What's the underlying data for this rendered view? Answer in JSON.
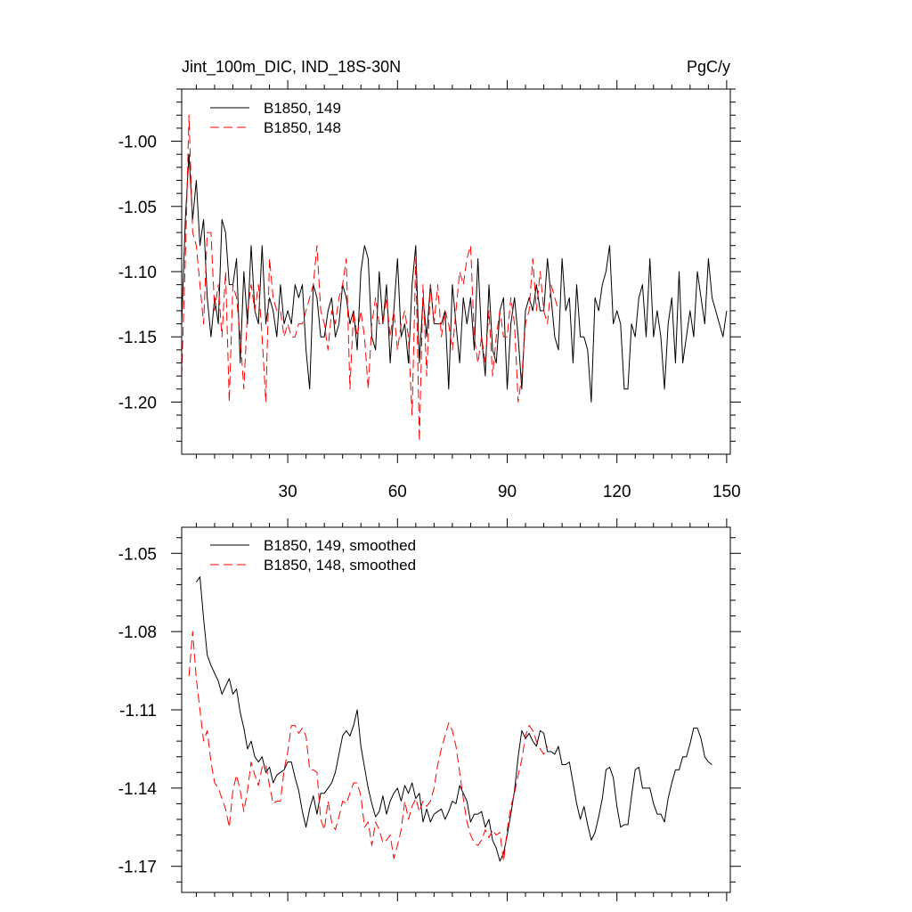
{
  "chart_data": [
    {
      "type": "line",
      "title_left": "Jint_100m_DIC, IND_18S-30N",
      "title_right": "PgC/y",
      "xlim": [
        1,
        151
      ],
      "ylim": [
        -1.24,
        -0.96
      ],
      "x_ticks": [
        30,
        60,
        90,
        120,
        150
      ],
      "x_tick_labels": [
        "30",
        "60",
        "90",
        "120",
        "150"
      ],
      "y_ticks": [
        -1.0,
        -1.05,
        -1.1,
        -1.15,
        -1.2
      ],
      "y_tick_labels": [
        "-1.00",
        "-1.05",
        "-1.10",
        "-1.15",
        "-1.20"
      ],
      "legend_position": "top-left",
      "series": [
        {
          "name": "B1850, 149",
          "color": "#000000",
          "dash": "solid",
          "x_start": 1,
          "values": [
            -1.14,
            -1.06,
            -1.01,
            -1.06,
            -1.03,
            -1.08,
            -1.06,
            -1.12,
            -1.15,
            -1.12,
            -1.14,
            -1.06,
            -1.07,
            -1.11,
            -1.11,
            -1.09,
            -1.17,
            -1.1,
            -1.14,
            -1.08,
            -1.13,
            -1.14,
            -1.08,
            -1.14,
            -1.12,
            -1.13,
            -1.15,
            -1.11,
            -1.14,
            -1.13,
            -1.14,
            -1.11,
            -1.12,
            -1.11,
            -1.16,
            -1.19,
            -1.11,
            -1.12,
            -1.15,
            -1.15,
            -1.13,
            -1.12,
            -1.15,
            -1.14,
            -1.11,
            -1.12,
            -1.14,
            -1.13,
            -1.16,
            -1.1,
            -1.08,
            -1.09,
            -1.15,
            -1.16,
            -1.1,
            -1.14,
            -1.11,
            -1.17,
            -1.13,
            -1.09,
            -1.15,
            -1.14,
            -1.17,
            -1.11,
            -1.08,
            -1.17,
            -1.12,
            -1.15,
            -1.11,
            -1.14,
            -1.14,
            -1.14,
            -1.13,
            -1.19,
            -1.11,
            -1.14,
            -1.17,
            -1.12,
            -1.14,
            -1.12,
            -1.16,
            -1.09,
            -1.15,
            -1.18,
            -1.11,
            -1.16,
            -1.17,
            -1.13,
            -1.12,
            -1.19,
            -1.14,
            -1.12,
            -1.15,
            -1.19,
            -1.13,
            -1.12,
            -1.13,
            -1.11,
            -1.13,
            -1.13,
            -1.09,
            -1.12,
            -1.15,
            -1.16,
            -1.09,
            -1.13,
            -1.12,
            -1.17,
            -1.11,
            -1.15,
            -1.15,
            -1.16,
            -1.2,
            -1.12,
            -1.13,
            -1.11,
            -1.1,
            -1.08,
            -1.14,
            -1.13,
            -1.14,
            -1.19,
            -1.19,
            -1.14,
            -1.15,
            -1.12,
            -1.11,
            -1.15,
            -1.09,
            -1.15,
            -1.13,
            -1.15,
            -1.19,
            -1.14,
            -1.12,
            -1.17,
            -1.1,
            -1.17,
            -1.15,
            -1.13,
            -1.15,
            -1.1,
            -1.12,
            -1.14,
            -1.09,
            -1.12,
            -1.13,
            -1.14,
            -1.15,
            -1.13
          ]
        },
        {
          "name": "B1850, 148",
          "color": "#ff0000",
          "dash": "dashed",
          "x_start": 1,
          "values": [
            -1.18,
            -1.09,
            -0.98,
            -1.07,
            -1.08,
            -1.11,
            -1.14,
            -1.07,
            -1.07,
            -1.13,
            -1.11,
            -1.15,
            -1.1,
            -1.2,
            -1.11,
            -1.12,
            -1.15,
            -1.19,
            -1.13,
            -1.11,
            -1.13,
            -1.11,
            -1.15,
            -1.2,
            -1.09,
            -1.12,
            -1.13,
            -1.13,
            -1.15,
            -1.14,
            -1.15,
            -1.15,
            -1.14,
            -1.14,
            -1.13,
            -1.12,
            -1.11,
            -1.08,
            -1.13,
            -1.14,
            -1.16,
            -1.13,
            -1.14,
            -1.12,
            -1.11,
            -1.09,
            -1.19,
            -1.13,
            -1.15,
            -1.13,
            -1.15,
            -1.19,
            -1.14,
            -1.12,
            -1.14,
            -1.14,
            -1.12,
            -1.15,
            -1.13,
            -1.16,
            -1.14,
            -1.13,
            -1.15,
            -1.21,
            -1.09,
            -1.23,
            -1.11,
            -1.18,
            -1.11,
            -1.14,
            -1.11,
            -1.15,
            -1.13,
            -1.14,
            -1.16,
            -1.13,
            -1.1,
            -1.11,
            -1.09,
            -1.08,
            -1.15,
            -1.17,
            -1.15,
            -1.17,
            -1.13,
            -1.18,
            -1.15,
            -1.13,
            -1.15,
            -1.15,
            -1.12,
            -1.14,
            -1.2,
            -1.18,
            -1.14,
            -1.13,
            -1.09,
            -1.13,
            -1.1,
            -1.13,
            -1.14,
            -1.11,
            -1.12,
            -1.13
          ]
        }
      ]
    },
    {
      "type": "line",
      "xlim": [
        1,
        151
      ],
      "ylim": [
        -1.18,
        -1.04
      ],
      "x_ticks": [
        30,
        60,
        90,
        120,
        150
      ],
      "y_ticks": [
        -1.05,
        -1.08,
        -1.11,
        -1.14,
        -1.17
      ],
      "y_tick_labels": [
        "-1.05",
        "-1.08",
        "-1.11",
        "-1.14",
        "-1.17"
      ],
      "legend_position": "top-left",
      "series": [
        {
          "name": "B1850, 149, smoothed",
          "color": "#000000",
          "dash": "solid",
          "x_start": 5,
          "values": [
            -1.061,
            -1.059,
            -1.075,
            -1.089,
            -1.093,
            -1.096,
            -1.099,
            -1.104,
            -1.101,
            -1.098,
            -1.104,
            -1.102,
            -1.111,
            -1.117,
            -1.125,
            -1.122,
            -1.128,
            -1.13,
            -1.128,
            -1.134,
            -1.132,
            -1.138,
            -1.135,
            -1.134,
            -1.133,
            -1.13,
            -1.13,
            -1.136,
            -1.141,
            -1.149,
            -1.155,
            -1.148,
            -1.143,
            -1.15,
            -1.142,
            -1.142,
            -1.14,
            -1.138,
            -1.134,
            -1.127,
            -1.12,
            -1.118,
            -1.12,
            -1.116,
            -1.11,
            -1.124,
            -1.132,
            -1.14,
            -1.146,
            -1.151,
            -1.149,
            -1.143,
            -1.15,
            -1.145,
            -1.142,
            -1.14,
            -1.145,
            -1.139,
            -1.142,
            -1.138,
            -1.144,
            -1.142,
            -1.153,
            -1.148,
            -1.153,
            -1.15,
            -1.149,
            -1.148,
            -1.152,
            -1.149,
            -1.145,
            -1.146,
            -1.139,
            -1.142,
            -1.145,
            -1.153,
            -1.15,
            -1.15,
            -1.149,
            -1.155,
            -1.152,
            -1.16,
            -1.163,
            -1.168,
            -1.165,
            -1.158,
            -1.15,
            -1.141,
            -1.128,
            -1.118,
            -1.121,
            -1.119,
            -1.122,
            -1.124,
            -1.118,
            -1.119,
            -1.126,
            -1.126,
            -1.127,
            -1.124,
            -1.131,
            -1.131,
            -1.13,
            -1.138,
            -1.146,
            -1.152,
            -1.147,
            -1.154,
            -1.16,
            -1.157,
            -1.151,
            -1.144,
            -1.133,
            -1.132,
            -1.136,
            -1.147,
            -1.155,
            -1.154,
            -1.154,
            -1.143,
            -1.133,
            -1.132,
            -1.14,
            -1.14,
            -1.14,
            -1.146,
            -1.15,
            -1.15,
            -1.153,
            -1.144,
            -1.138,
            -1.133,
            -1.133,
            -1.128,
            -1.128,
            -1.123,
            -1.117,
            -1.117,
            -1.121,
            -1.128,
            -1.13,
            -1.131
          ]
        },
        {
          "name": "B1850, 148, smoothed",
          "color": "#ff0000",
          "dash": "dashed",
          "x_start": 3,
          "values": [
            -1.097,
            -1.08,
            -1.098,
            -1.11,
            -1.122,
            -1.118,
            -1.13,
            -1.138,
            -1.14,
            -1.144,
            -1.148,
            -1.155,
            -1.141,
            -1.135,
            -1.141,
            -1.149,
            -1.141,
            -1.13,
            -1.135,
            -1.139,
            -1.132,
            -1.131,
            -1.139,
            -1.146,
            -1.145,
            -1.145,
            -1.133,
            -1.126,
            -1.116,
            -1.116,
            -1.119,
            -1.117,
            -1.12,
            -1.133,
            -1.133,
            -1.134,
            -1.152,
            -1.156,
            -1.145,
            -1.153,
            -1.156,
            -1.151,
            -1.145,
            -1.146,
            -1.142,
            -1.138,
            -1.138,
            -1.143,
            -1.155,
            -1.153,
            -1.162,
            -1.153,
            -1.156,
            -1.161,
            -1.16,
            -1.158,
            -1.167,
            -1.162,
            -1.156,
            -1.145,
            -1.152,
            -1.147,
            -1.144,
            -1.149,
            -1.145,
            -1.147,
            -1.145,
            -1.14,
            -1.131,
            -1.125,
            -1.12,
            -1.115,
            -1.118,
            -1.124,
            -1.134,
            -1.144,
            -1.153,
            -1.158,
            -1.161,
            -1.162,
            -1.16,
            -1.156,
            -1.159,
            -1.156,
            -1.158,
            -1.157,
            -1.168,
            -1.156,
            -1.147,
            -1.142,
            -1.135,
            -1.129,
            -1.12,
            -1.116,
            -1.118,
            -1.122,
            -1.125,
            -1.127,
            -1.124
          ]
        }
      ]
    }
  ]
}
